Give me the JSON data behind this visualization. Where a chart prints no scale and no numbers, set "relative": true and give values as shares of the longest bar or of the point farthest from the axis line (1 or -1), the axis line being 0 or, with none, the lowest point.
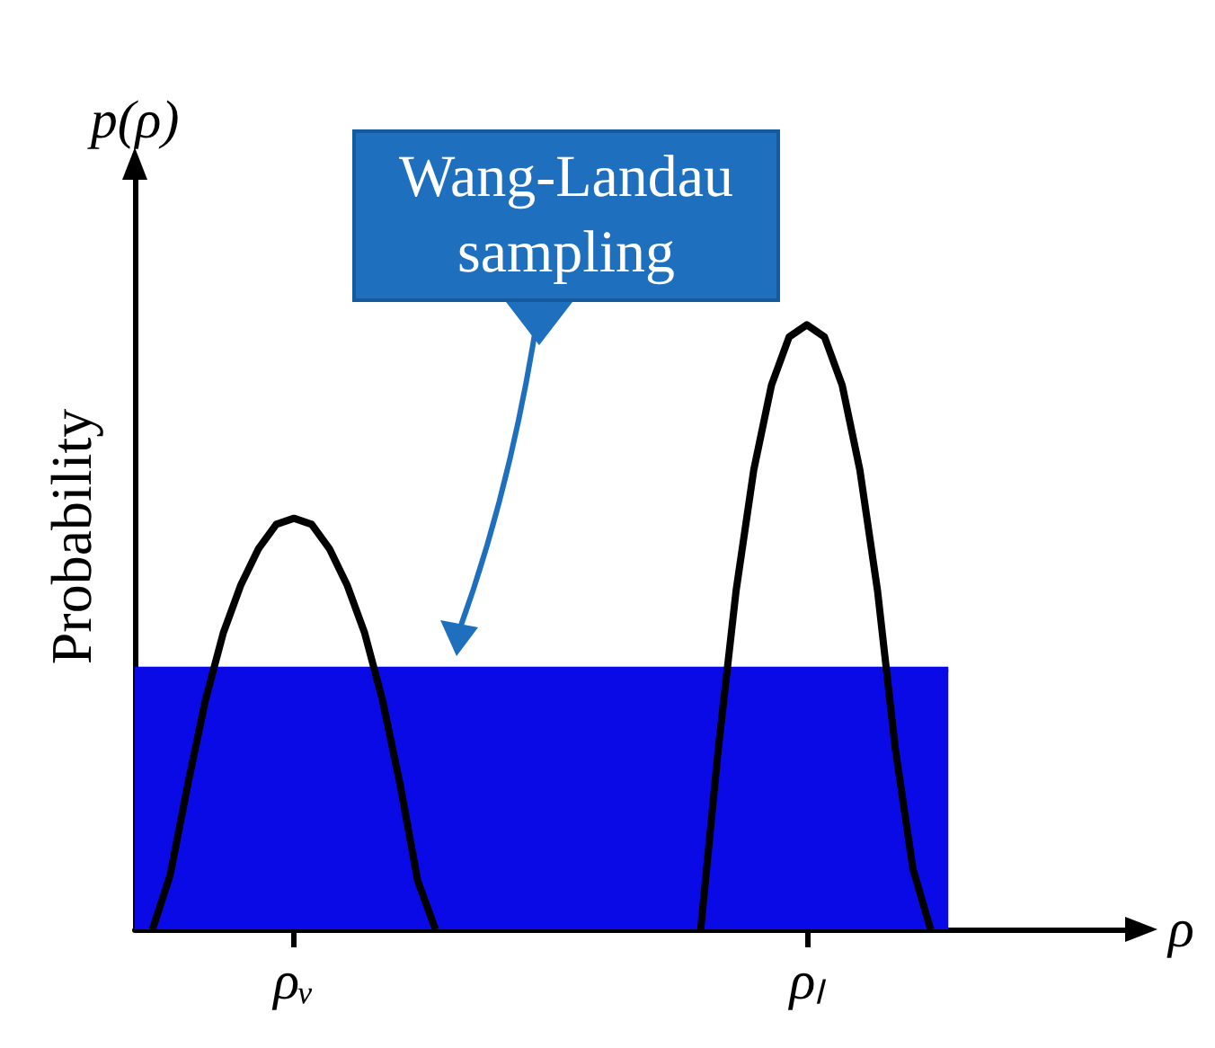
{
  "chart_data": {
    "type": "line",
    "relative": true,
    "ylabel": "p(ρ)",
    "xlabel": "ρ",
    "annotations": [
      "Wang-Landau sampling",
      "Probability"
    ],
    "categories": [
      null,
      null,
      null,
      null,
      null,
      null,
      null,
      null,
      null,
      "ρᵥ",
      null,
      null,
      null,
      null,
      null,
      null,
      null,
      null,
      null,
      null,
      null,
      null,
      null,
      null,
      null,
      null,
      null,
      null,
      null,
      null,
      null,
      null,
      null,
      null,
      null,
      null,
      null,
      null,
      "ρₗ",
      null,
      null,
      null,
      null,
      null,
      null,
      null,
      null,
      null,
      null,
      null,
      null,
      null,
      null,
      null,
      null,
      null,
      null
    ],
    "series": [
      {
        "type": "area",
        "color": "#0a0ae6",
        "values": [
          0.43,
          0.43,
          0.43,
          0.43,
          0.43,
          0.43,
          0.43,
          0.43,
          0.43,
          0.43,
          0.43,
          0.43,
          0.43,
          0.43,
          0.43,
          0.43,
          0.43,
          0.43,
          0.43,
          0.43,
          0.43,
          0.43,
          0.43,
          0.43,
          0.43,
          0.43,
          0.43,
          0.43,
          0.43,
          0.43,
          0.43,
          0.43,
          0.43,
          0.43,
          0.43,
          0.43,
          0.43,
          0.43,
          0.43,
          0.43,
          0.43,
          0.43,
          0.43,
          0.43,
          0.43,
          0.43,
          0.43,
          null,
          null,
          null,
          null,
          null,
          null,
          null,
          null,
          null,
          null
        ]
      },
      {
        "color": "#000000",
        "values": [
          null,
          0,
          0.09,
          0.24,
          0.38,
          0.49,
          0.57,
          0.63,
          0.67,
          0.68,
          0.67,
          0.63,
          0.57,
          0.49,
          0.38,
          0.24,
          0.08,
          0,
          null,
          null,
          null,
          null,
          null,
          null,
          null,
          null,
          null,
          null,
          null,
          null,
          null,
          null,
          null,
          null,
          null,
          null,
          null,
          null,
          null,
          null,
          null,
          null,
          null,
          null,
          null,
          null,
          null,
          null,
          null,
          null,
          null,
          null,
          null,
          null,
          null,
          null,
          null
        ]
      },
      {
        "color": "#000000",
        "values": [
          null,
          null,
          null,
          null,
          null,
          null,
          null,
          null,
          null,
          null,
          null,
          null,
          null,
          null,
          null,
          null,
          null,
          null,
          null,
          null,
          null,
          null,
          null,
          null,
          null,
          null,
          null,
          null,
          null,
          null,
          null,
          null,
          0,
          0.3,
          0.56,
          0.76,
          0.9,
          0.98,
          1,
          0.98,
          0.9,
          0.76,
          0.56,
          0.3,
          0.1,
          0,
          null,
          null,
          null,
          null,
          null,
          null,
          null,
          null,
          null,
          null,
          null
        ]
      }
    ]
  }
}
